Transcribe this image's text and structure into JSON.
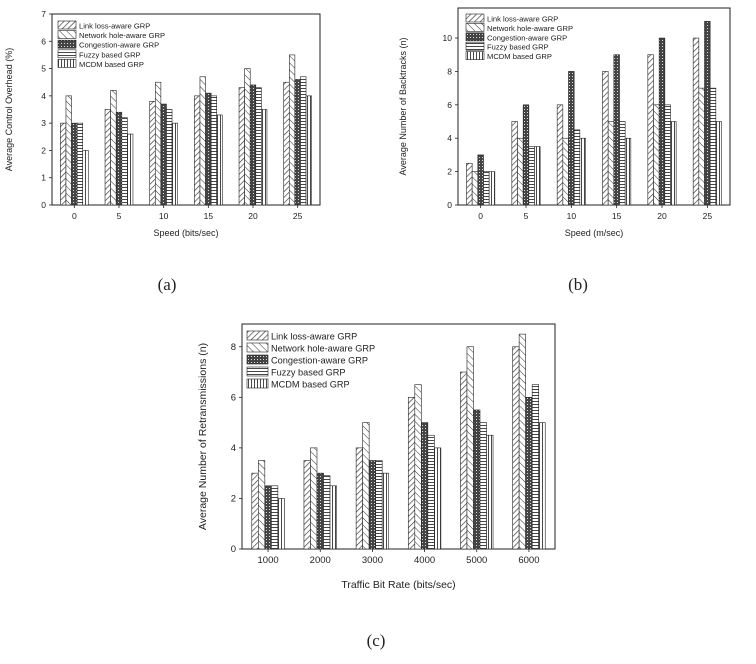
{
  "series_styles": [
    {
      "pattern": "pat-diag-fwd",
      "fill": "#ffffff"
    },
    {
      "pattern": "pat-diag-back",
      "fill": "#ffffff"
    },
    {
      "pattern": "pat-cross",
      "fill": "#3a3a3a"
    },
    {
      "pattern": "pat-horiz",
      "fill": "#ffffff"
    },
    {
      "pattern": "pat-vert",
      "fill": "#ffffff"
    }
  ],
  "chart_data": [
    {
      "id": "a",
      "type": "bar",
      "caption": "(a)",
      "xlabel": "Speed (bits/sec)",
      "ylabel": "Average Control Overhead (%)",
      "categories": [
        "0",
        "5",
        "10",
        "15",
        "20",
        "25"
      ],
      "ylim": [
        0,
        7
      ],
      "yticks": [
        0,
        1,
        2,
        3,
        4,
        5,
        6,
        7
      ],
      "legend_position": "top-left",
      "series": [
        {
          "name": "Link loss-aware GRP",
          "values": [
            3.0,
            3.5,
            3.8,
            4.0,
            4.3,
            4.5
          ]
        },
        {
          "name": "Network hole-aware GRP",
          "values": [
            4.0,
            4.2,
            4.5,
            4.7,
            5.0,
            5.5
          ]
        },
        {
          "name": "Congestion-aware GRP",
          "values": [
            3.0,
            3.4,
            3.7,
            4.1,
            4.4,
            4.6
          ]
        },
        {
          "name": "Fuzzy based GRP",
          "values": [
            3.0,
            3.2,
            3.5,
            4.0,
            4.3,
            4.7
          ]
        },
        {
          "name": "MCDM based GRP",
          "values": [
            2.0,
            2.6,
            3.0,
            3.3,
            3.5,
            4.0
          ]
        }
      ]
    },
    {
      "id": "b",
      "type": "bar",
      "caption": "(b)",
      "xlabel": "Speed (m/sec)",
      "ylabel": "Average Number of Backtracks (n)",
      "categories": [
        "0",
        "5",
        "10",
        "15",
        "20",
        "25"
      ],
      "ylim": [
        0,
        11.8
      ],
      "yticks": [
        0,
        2,
        4,
        6,
        8,
        10
      ],
      "legend_position": "top-left",
      "series": [
        {
          "name": "Link loss-aware GRP",
          "values": [
            2.5,
            5.0,
            6.0,
            8.0,
            9.0,
            10.0
          ]
        },
        {
          "name": "Network hole-aware GRP",
          "values": [
            2.0,
            4.0,
            4.0,
            5.0,
            6.0,
            7.0
          ]
        },
        {
          "name": "Congestion-aware GRP",
          "values": [
            3.0,
            6.0,
            8.0,
            9.0,
            10.0,
            11.0
          ]
        },
        {
          "name": "Fuzzy based GRP",
          "values": [
            2.0,
            3.5,
            4.5,
            5.0,
            6.0,
            7.0
          ]
        },
        {
          "name": "MCDM based GRP",
          "values": [
            2.0,
            3.5,
            4.0,
            4.0,
            5.0,
            5.0
          ]
        }
      ]
    },
    {
      "id": "c",
      "type": "bar",
      "caption": "(c)",
      "xlabel": "Traffic Bit Rate (bits/sec)",
      "ylabel": "Average Number of Retransmissions (n)",
      "categories": [
        "1000",
        "2000",
        "3000",
        "4000",
        "5000",
        "6000"
      ],
      "ylim": [
        0,
        8.9
      ],
      "yticks": [
        0,
        2,
        4,
        6,
        8
      ],
      "legend_position": "top-left",
      "series": [
        {
          "name": "Link loss-aware GRP",
          "values": [
            3.0,
            3.5,
            4.0,
            6.0,
            7.0,
            8.0
          ]
        },
        {
          "name": "Network hole-aware GRP",
          "values": [
            3.5,
            4.0,
            5.0,
            6.5,
            8.0,
            8.5
          ]
        },
        {
          "name": "Congestion-aware GRP",
          "values": [
            2.5,
            3.0,
            3.5,
            5.0,
            5.5,
            6.0
          ]
        },
        {
          "name": "Fuzzy based GRP",
          "values": [
            2.5,
            2.9,
            3.5,
            4.5,
            5.0,
            6.5
          ]
        },
        {
          "name": "MCDM based GRP",
          "values": [
            2.0,
            2.5,
            3.0,
            4.0,
            4.5,
            5.0
          ]
        }
      ]
    }
  ]
}
